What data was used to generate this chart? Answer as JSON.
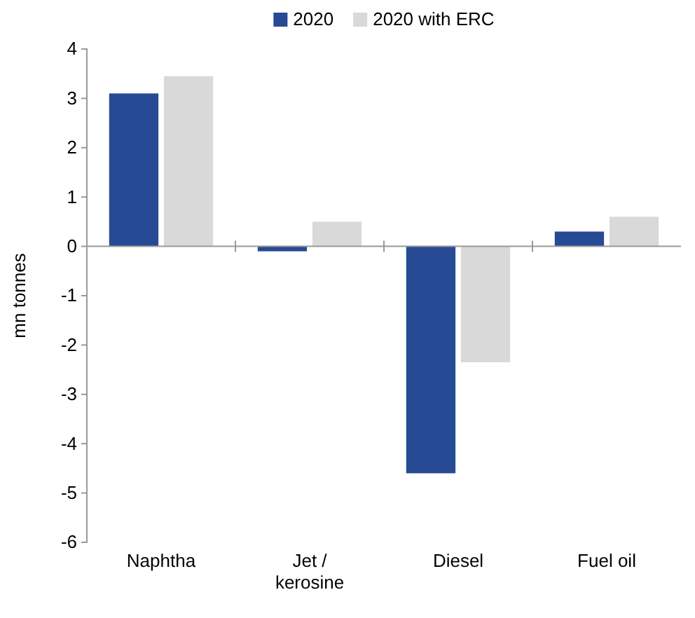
{
  "chart_data": {
    "type": "bar",
    "ylabel": "mn tonnes",
    "categories": [
      "Naphtha",
      "Jet / kerosine",
      "Diesel",
      "Fuel oil"
    ],
    "series": [
      {
        "name": "2020",
        "color": "#264a94",
        "values": [
          3.1,
          -0.1,
          -4.6,
          0.3
        ]
      },
      {
        "name": "2020 with ERC",
        "color": "#d9d9d9",
        "values": [
          3.45,
          0.5,
          -2.35,
          0.6
        ]
      }
    ],
    "ylim": [
      -6,
      4
    ],
    "yticks": [
      -6,
      -5,
      -4,
      -3,
      -2,
      -1,
      0,
      1,
      2,
      3,
      4
    ],
    "legend": "top"
  }
}
